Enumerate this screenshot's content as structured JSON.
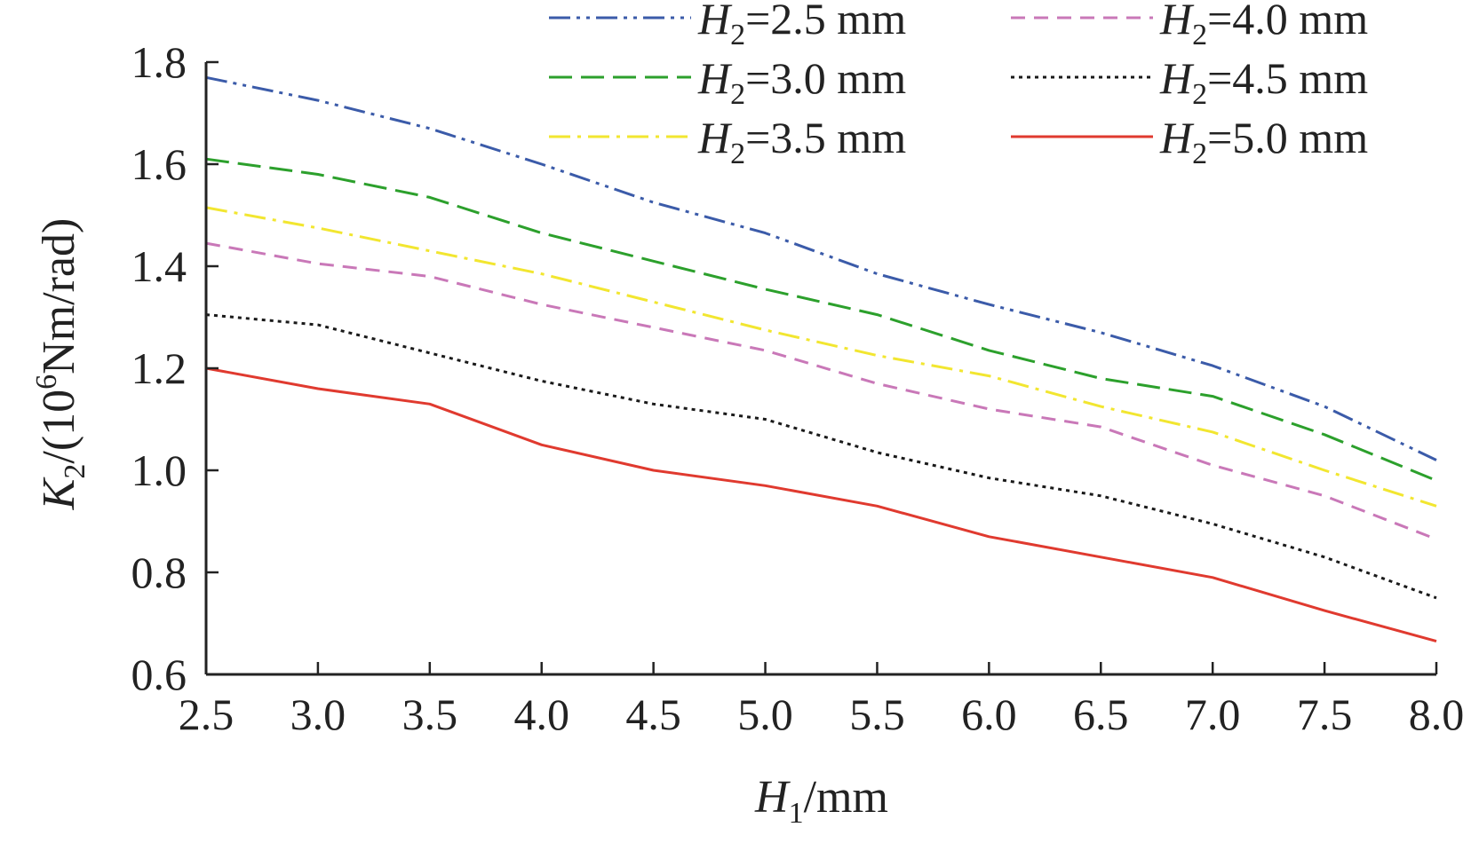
{
  "chart_data": {
    "type": "line",
    "xlabel": {
      "main": "H",
      "sub": "1",
      "rest": "/mm"
    },
    "ylabel": {
      "main": "K",
      "sub": "2",
      "mid": "/(10",
      "sup": "6",
      "rest": "Nm/rad)"
    },
    "xlim": [
      2.5,
      8.0
    ],
    "ylim": [
      0.6,
      1.8
    ],
    "x_tick_labels": [
      "2.5",
      "3.0",
      "3.5",
      "4.0",
      "4.5",
      "5.0",
      "5.5",
      "6.0",
      "6.5",
      "7.0",
      "7.5",
      "8.0"
    ],
    "y_tick_labels": [
      "0.6",
      "0.8",
      "1.0",
      "1.2",
      "1.4",
      "1.6",
      "1.8"
    ],
    "grid": false,
    "legend_position": "top-right",
    "x": [
      2.5,
      3.0,
      3.5,
      4.0,
      4.5,
      5.0,
      5.5,
      6.0,
      6.5,
      7.0,
      7.5,
      8.0
    ],
    "series": [
      {
        "name_var": "H",
        "name_sub": "2",
        "name_rest": "=2.5 mm",
        "color": "#3b5ba9",
        "dash": "dashdotdot",
        "values": [
          1.77,
          1.725,
          1.67,
          1.6,
          1.525,
          1.465,
          1.385,
          1.325,
          1.27,
          1.205,
          1.125,
          1.02
        ]
      },
      {
        "name_var": "H",
        "name_sub": "2",
        "name_rest": "=3.0 mm",
        "color": "#2ca02c",
        "dash": "dash",
        "values": [
          1.61,
          1.58,
          1.535,
          1.465,
          1.41,
          1.355,
          1.305,
          1.235,
          1.18,
          1.145,
          1.07,
          0.98
        ]
      },
      {
        "name_var": "H",
        "name_sub": "2",
        "name_rest": "=3.5 mm",
        "color": "#f2e630",
        "dash": "dashdot",
        "values": [
          1.515,
          1.475,
          1.43,
          1.385,
          1.33,
          1.275,
          1.225,
          1.185,
          1.125,
          1.075,
          1.0,
          0.93
        ]
      },
      {
        "name_var": "H",
        "name_sub": "2",
        "name_rest": "=4.0 mm",
        "color": "#c978b8",
        "dash": "shortdash",
        "values": [
          1.445,
          1.405,
          1.38,
          1.325,
          1.28,
          1.235,
          1.17,
          1.12,
          1.085,
          1.01,
          0.95,
          0.865
        ]
      },
      {
        "name_var": "H",
        "name_sub": "2",
        "name_rest": "=4.5 mm",
        "color": "#1a1a1a",
        "dash": "dot",
        "values": [
          1.305,
          1.285,
          1.23,
          1.175,
          1.13,
          1.1,
          1.035,
          0.985,
          0.95,
          0.895,
          0.83,
          0.75
        ]
      },
      {
        "name_var": "H",
        "name_sub": "2",
        "name_rest": "=5.0 mm",
        "color": "#e03a2f",
        "dash": "solid",
        "values": [
          1.2,
          1.16,
          1.13,
          1.05,
          1.0,
          0.97,
          0.93,
          0.87,
          0.83,
          0.79,
          0.725,
          0.665
        ]
      }
    ]
  }
}
